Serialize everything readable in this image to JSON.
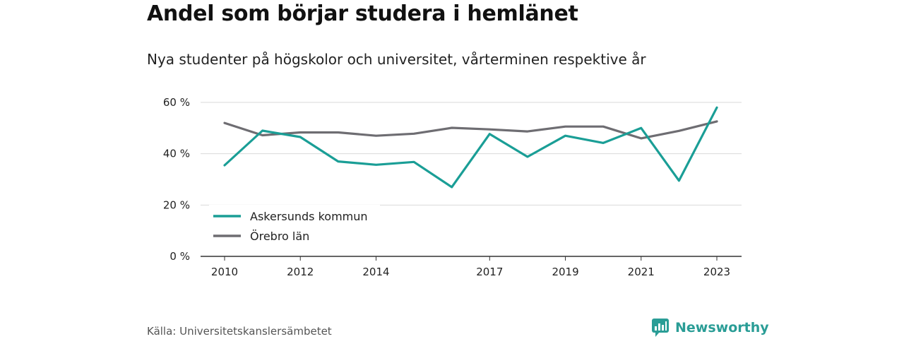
{
  "header": {
    "title": "Andel som börjar studera i hemlänet",
    "subtitle": "Nya studenter på högskolor och universitet, vårterminen respektive år"
  },
  "footer": {
    "source": "Källa: Universitetskanslersämbetet",
    "brand": "Newsworthy",
    "brand_icon": "bar-chart-speech-bubble-icon",
    "brand_color": "#2a9d96"
  },
  "chart_data": {
    "type": "line",
    "title": "",
    "xlabel": "",
    "ylabel": "",
    "x": [
      2010,
      2011,
      2012,
      2013,
      2014,
      2015,
      2016,
      2017,
      2018,
      2019,
      2020,
      2021,
      2022,
      2023
    ],
    "x_ticks": [
      "2010",
      "2012",
      "2014",
      "2017",
      "2019",
      "2021",
      "2023"
    ],
    "y_ticks": [
      "0 %",
      "20 %",
      "40 %",
      "60 %"
    ],
    "ylim": [
      0,
      60
    ],
    "grid": true,
    "legend": "bottom-left",
    "series": [
      {
        "name": "Askersunds kommun",
        "color": "#1a9e96",
        "values": [
          35.5,
          49.0,
          46.5,
          37.0,
          35.7,
          36.8,
          27.0,
          47.7,
          38.8,
          47.0,
          44.2,
          50.0,
          29.5,
          58.0
        ]
      },
      {
        "name": "Örebro län",
        "color": "#6e6d72",
        "values": [
          52.0,
          47.2,
          48.3,
          48.3,
          47.0,
          47.8,
          50.1,
          49.5,
          48.7,
          50.6,
          50.6,
          46.0,
          48.9,
          52.6
        ]
      }
    ]
  }
}
